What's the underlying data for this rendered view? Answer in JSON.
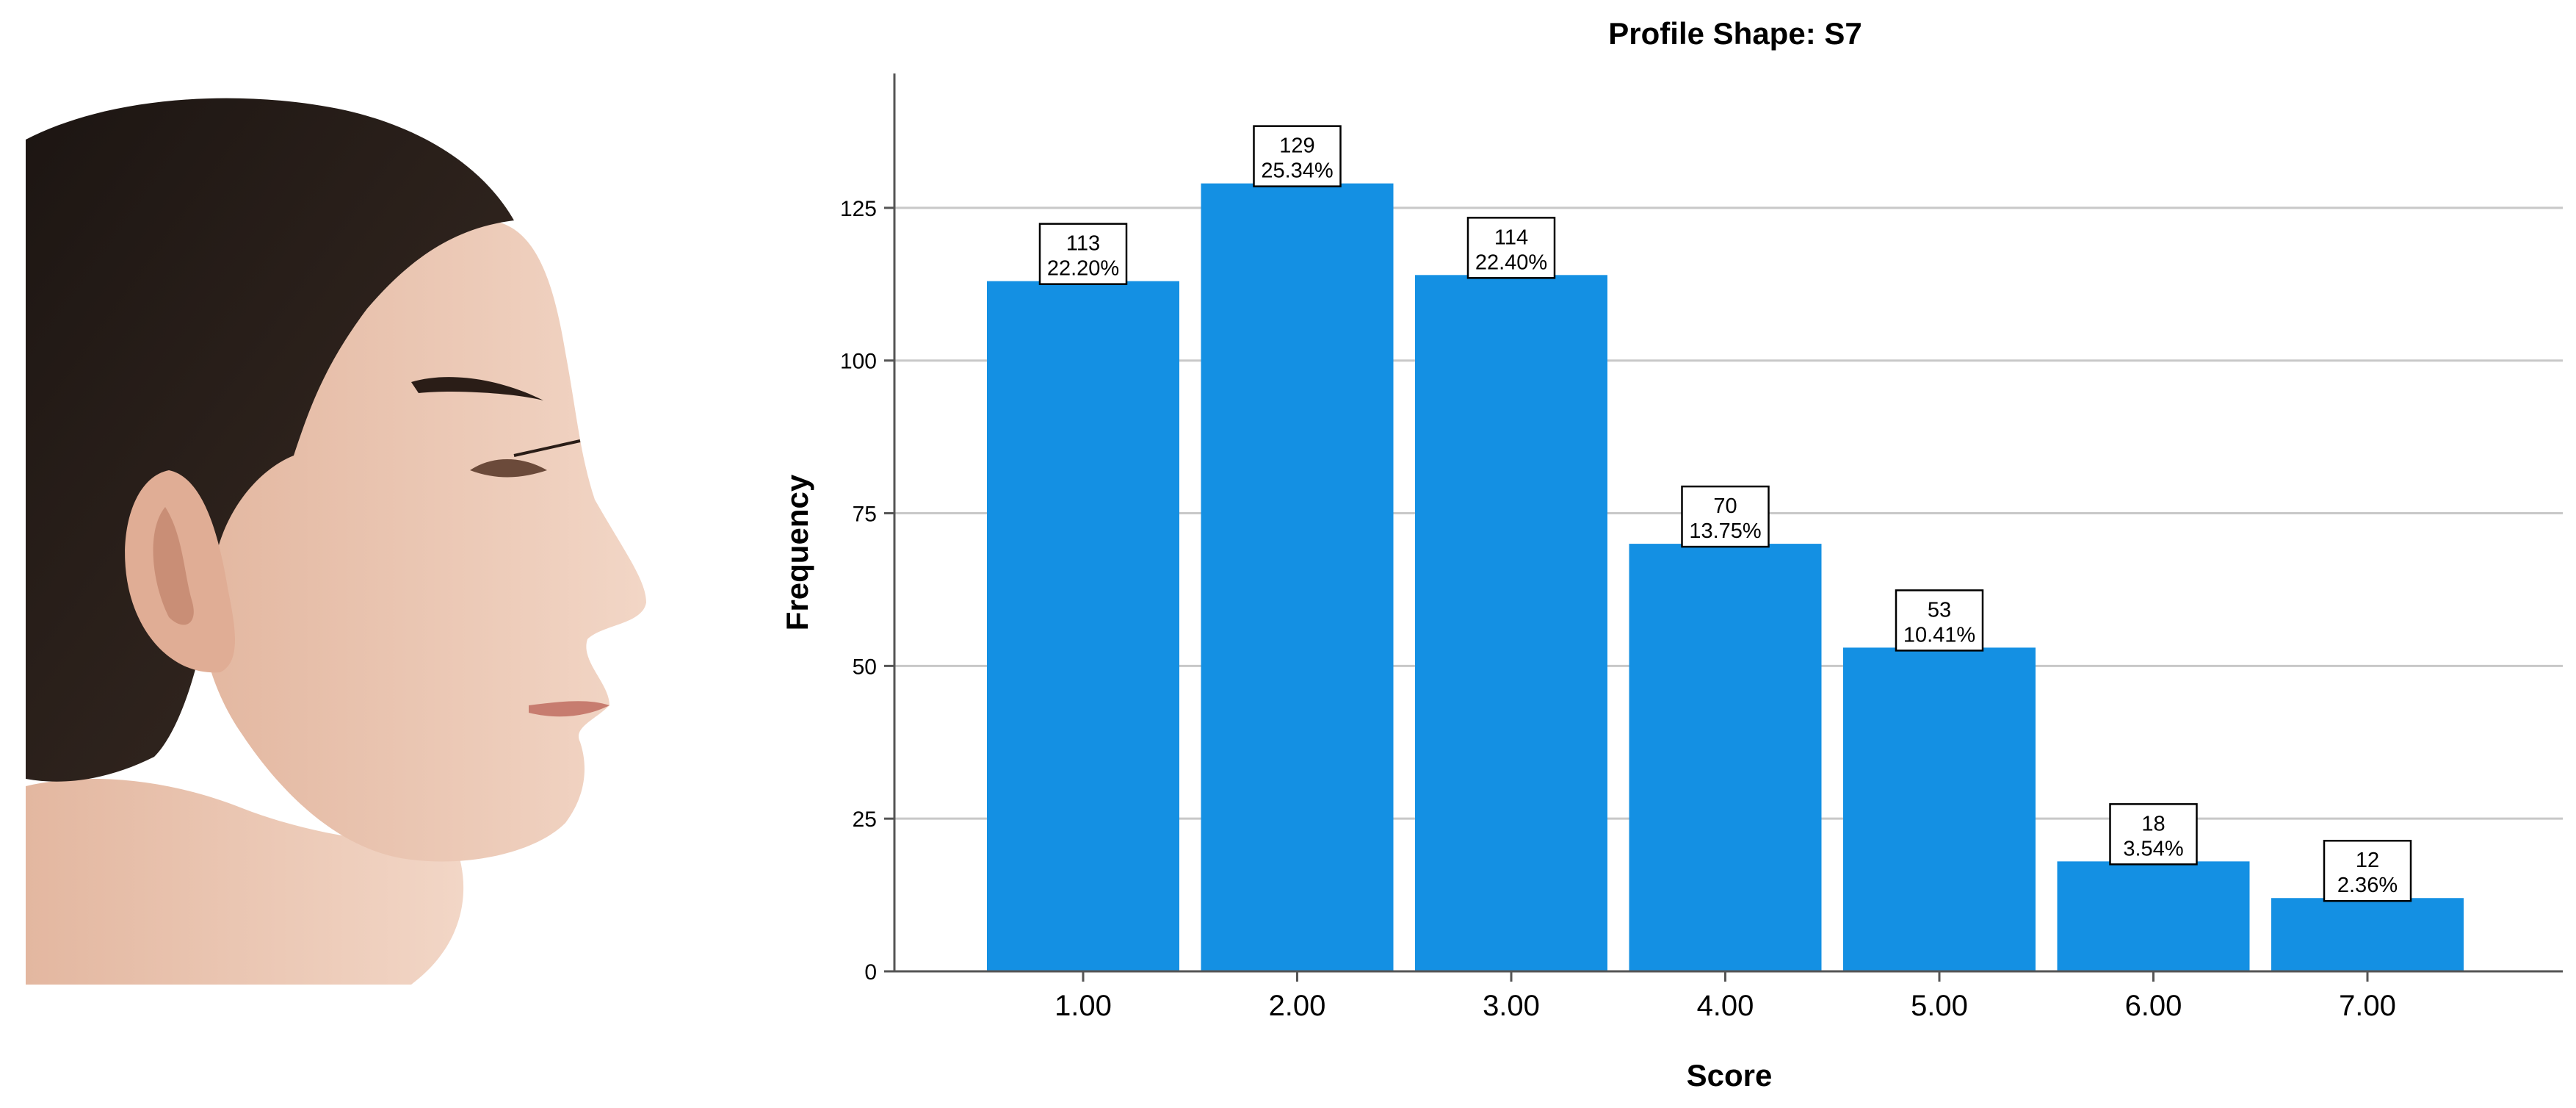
{
  "chart_data": {
    "type": "bar",
    "title": "Profile Shape: S7",
    "xlabel": "Score",
    "ylabel": "Frequency",
    "categories": [
      "1.00",
      "2.00",
      "3.00",
      "4.00",
      "5.00",
      "6.00",
      "7.00"
    ],
    "values": [
      113,
      129,
      114,
      70,
      53,
      18,
      12
    ],
    "percent_labels": [
      "22.20%",
      "25.34%",
      "22.40%",
      "13.75%",
      "10.41%",
      "3.54%",
      "2.36%"
    ],
    "yticks": [
      0,
      25,
      50,
      75,
      100,
      125
    ],
    "ylim": [
      0,
      147
    ],
    "grid": true,
    "bar_color": "#1490E3"
  }
}
